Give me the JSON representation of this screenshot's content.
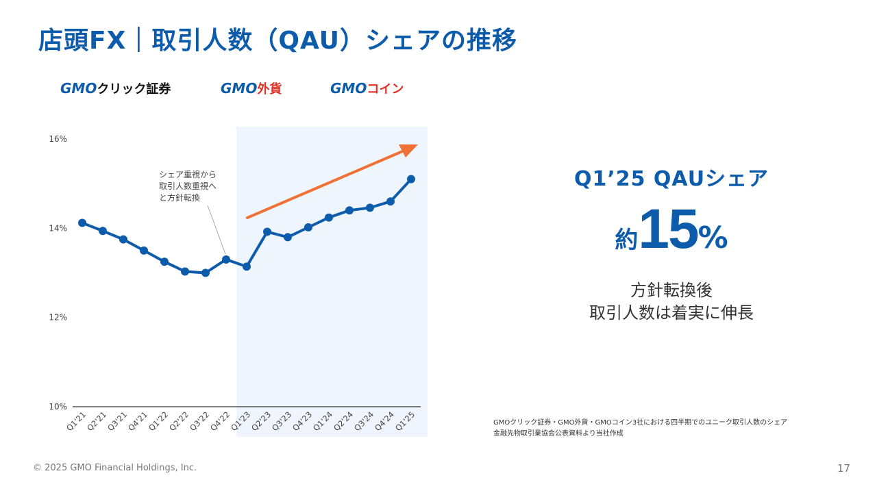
{
  "title": "店頭FX｜取引人数（QAU）シェアの推移",
  "logos": {
    "click": {
      "gmo": "GMO",
      "name": "クリック証券"
    },
    "gaika": {
      "gmo": "GMO",
      "name": "外貨"
    },
    "coin": {
      "gmo": "GMO",
      "name": "コイン"
    }
  },
  "annotation": [
    "シェア重視から",
    "取引人数重視へ",
    "と方針転換"
  ],
  "headline": "Q1’25 QAUシェア",
  "big": {
    "approx": "約",
    "value": "15",
    "unit": "%"
  },
  "desc": [
    "方針転換後",
    "取引人数は着実に伸長"
  ],
  "footnote": [
    "GMOクリック証券・GMO外貨・GMOコイン3社における四半期でのユニーク取引人数のシェア",
    "金融先物取引業協会公表資料より当社作成"
  ],
  "copyright": "© 2025 GMO Financial Holdings, Inc.",
  "page_number": "17",
  "colors": {
    "title": "#0d5cab",
    "line": "#0d5cab",
    "arrow": "#f07036",
    "highlight": "#eef5fd",
    "gmo_red": "#e23127"
  },
  "chart_data": {
    "type": "line",
    "categories": [
      "Q1'21",
      "Q2'21",
      "Q3'21",
      "Q4'21",
      "Q1'22",
      "Q2'22",
      "Q3'22",
      "Q4'22",
      "Q1'23",
      "Q2'23",
      "Q3'23",
      "Q4'23",
      "Q1'24",
      "Q2'24",
      "Q3'24",
      "Q4'24",
      "Q1'25"
    ],
    "series": [
      {
        "values": [
          14.12,
          13.94,
          13.75,
          13.5,
          13.25,
          13.03,
          13.0,
          13.3,
          13.14,
          13.92,
          13.8,
          14.02,
          14.24,
          14.4,
          14.46,
          14.6,
          15.1
        ]
      }
    ],
    "y_ticks": [
      "10%",
      "12%",
      "14%",
      "16%"
    ],
    "ylim": [
      10,
      16
    ],
    "highlight_from": "Q1'23",
    "trend_arrow": true,
    "grid": false
  }
}
